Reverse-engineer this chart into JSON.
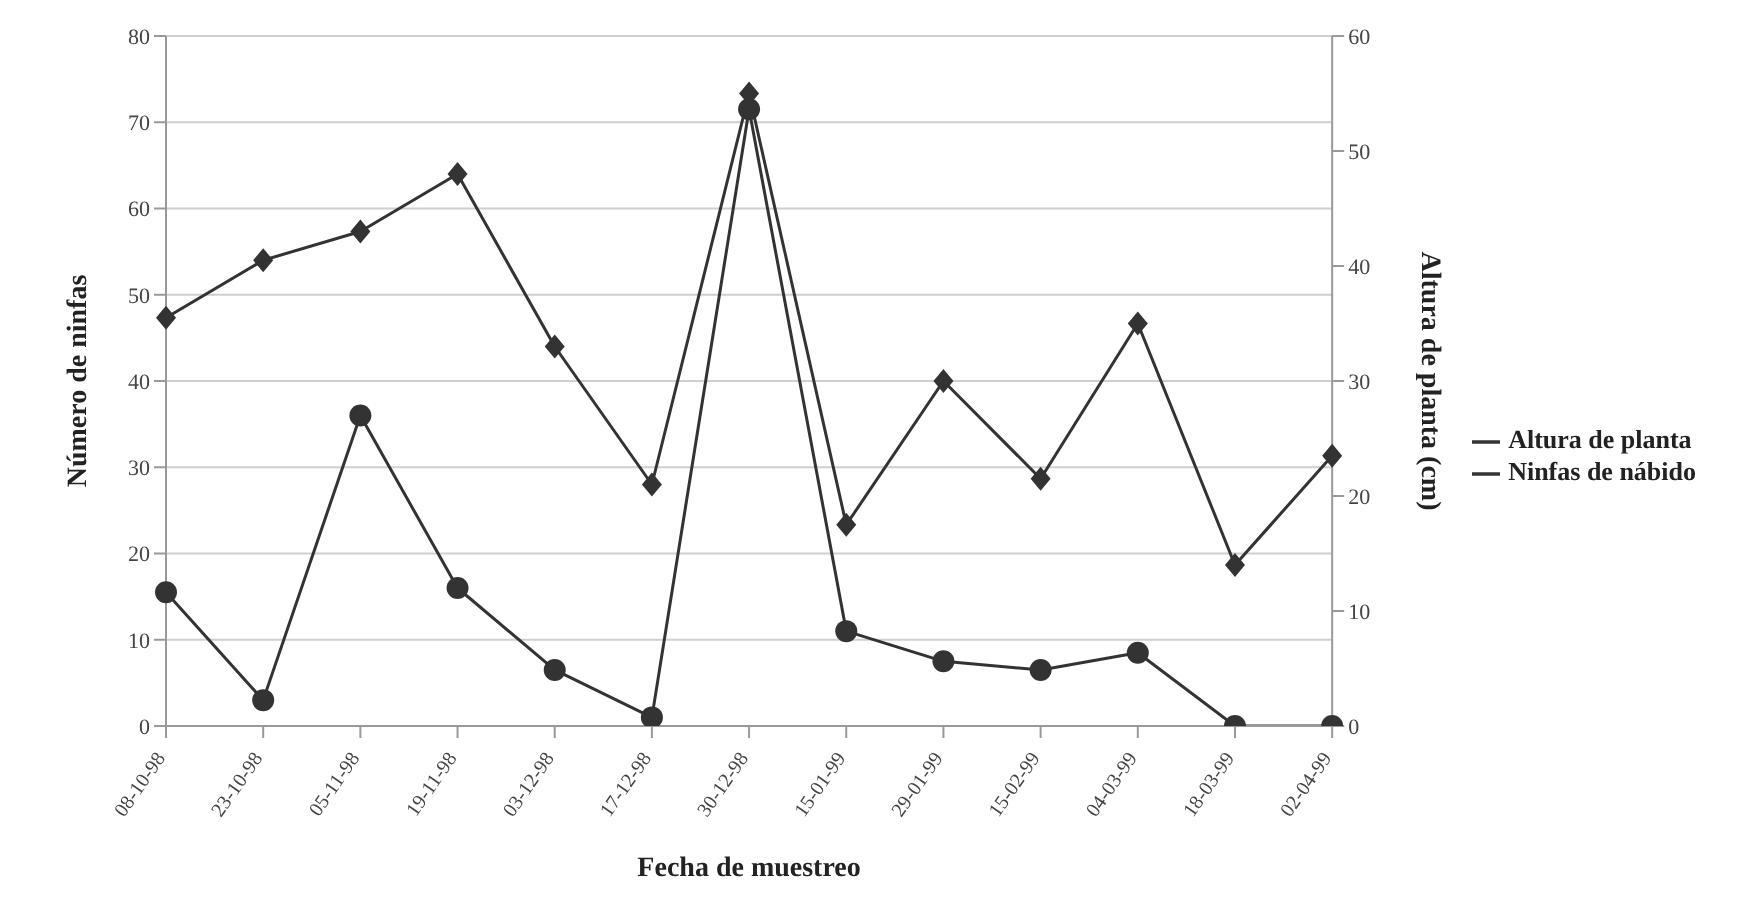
{
  "chart_data": {
    "type": "line",
    "xlabel": "Fecha de muestreo",
    "ylabel": "Número de ninfas",
    "y2label": "Altura de planta (cm)",
    "categories": [
      "08-10-98",
      "23-10-98",
      "05-11-98",
      "19-11-98",
      "03-12-98",
      "17-12-98",
      "30-12-98",
      "15-01-99",
      "29-01-99",
      "15-02-99",
      "04-03-99",
      "18-03-99",
      "02-04-99"
    ],
    "series": [
      {
        "name": "Ninfas de nábido",
        "color": "#333333",
        "marker": "circle",
        "values": [
          15.5,
          3,
          36,
          16,
          6.5,
          1,
          71.5,
          11,
          7.5,
          6.5,
          8.5,
          0,
          0
        ]
      },
      {
        "name": "Altura de planta",
        "color": "#333333",
        "marker": "diamond",
        "axis": "y2",
        "values": [
          35.5,
          40.5,
          43,
          48,
          33,
          21,
          55,
          17.5,
          30,
          21.5,
          35,
          14,
          23.5
        ]
      }
    ],
    "ylim": [
      0,
      80
    ],
    "yticks": [
      0,
      10,
      20,
      30,
      40,
      50,
      60,
      70,
      80
    ],
    "y2lim": [
      0,
      60
    ],
    "y2ticks": [
      0,
      10,
      20,
      30,
      40,
      50,
      60
    ],
    "grid": "y",
    "legend": "right",
    "line_style": "solid"
  }
}
